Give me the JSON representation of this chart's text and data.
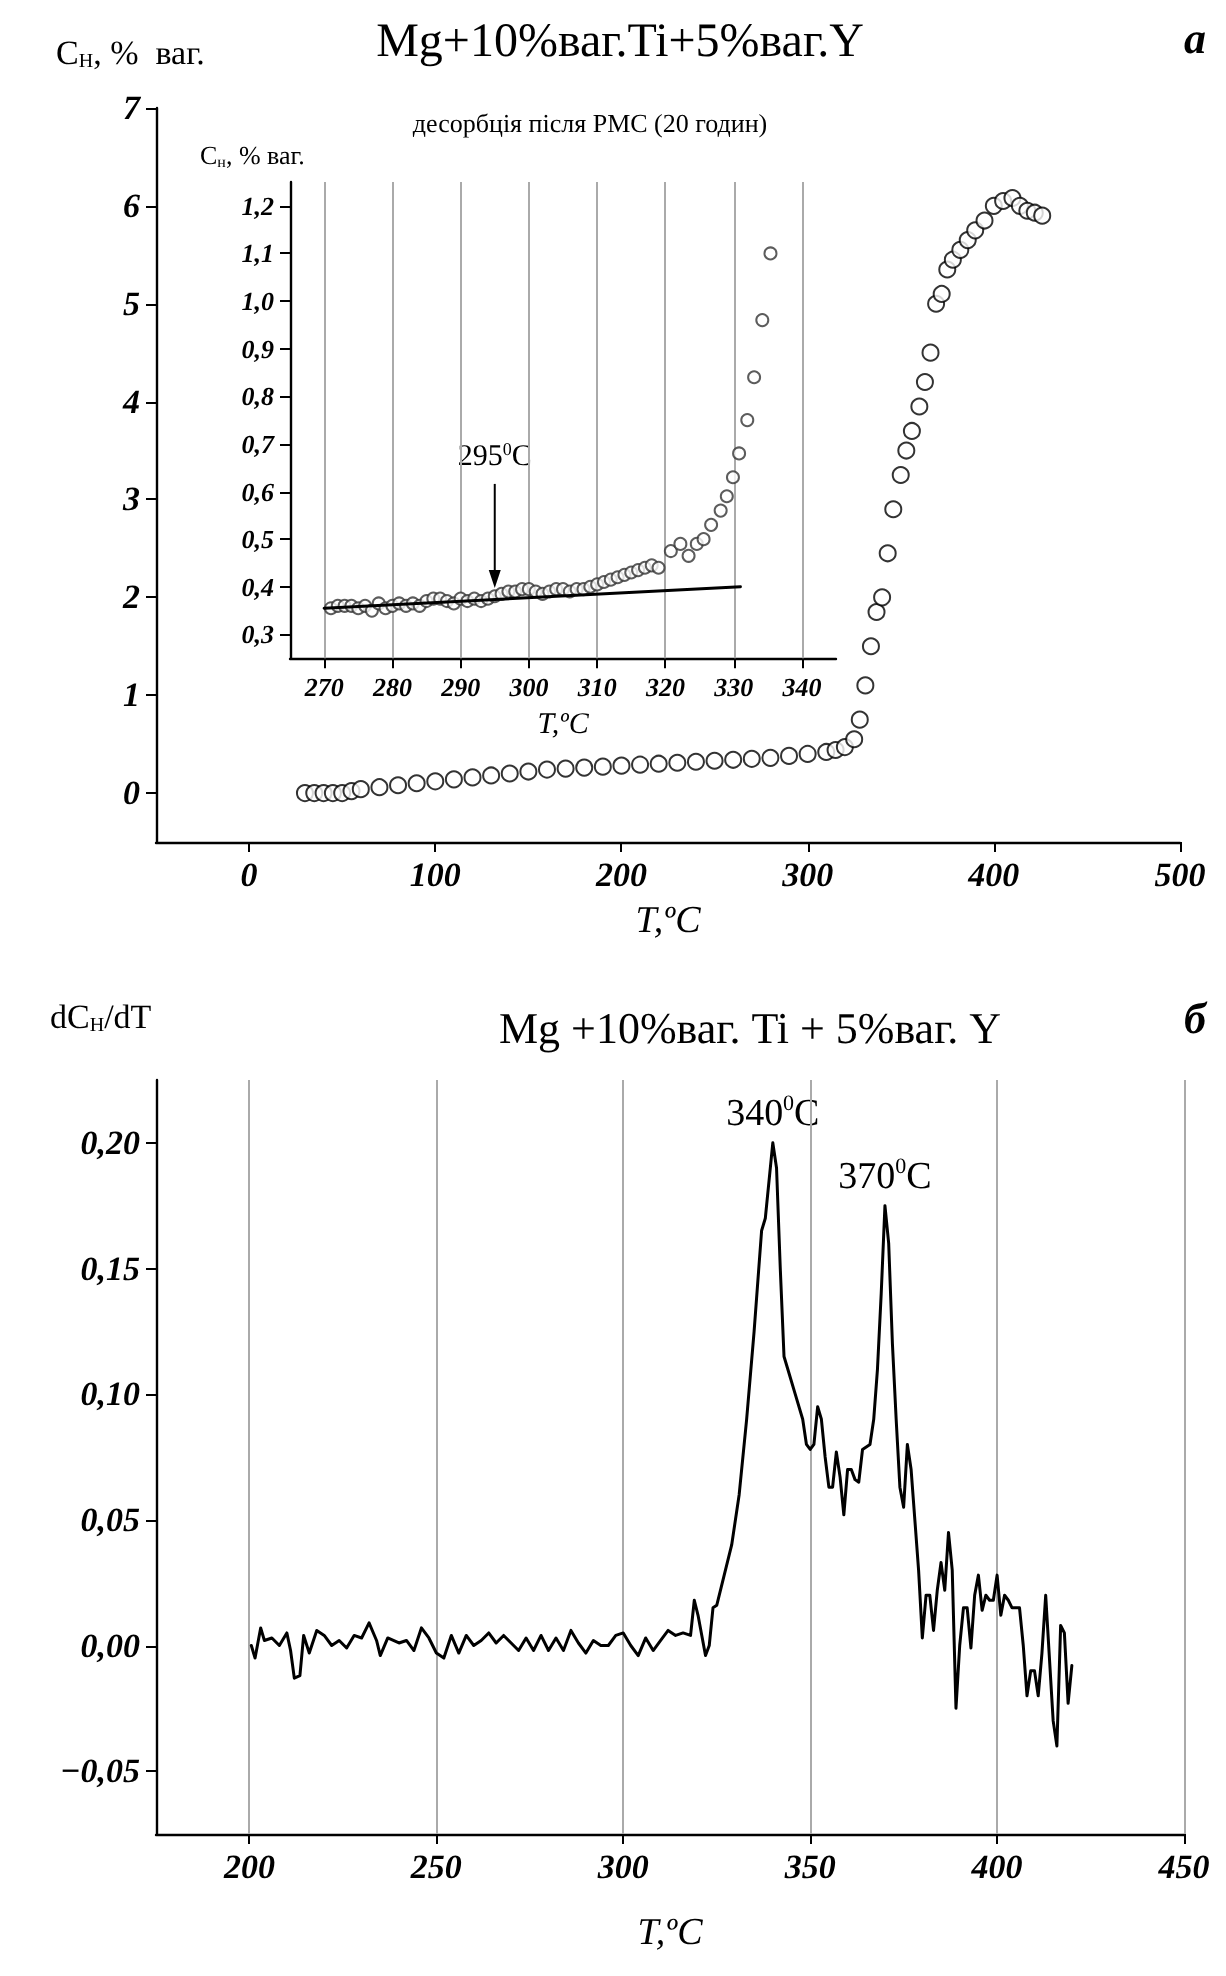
{
  "chart_data": [
    {
      "type": "scatter",
      "title": "Mg+10%ваг.Ti+5%ваг.Y",
      "xlabel": "T,ºC",
      "ylabel": "C$_{H}$, %  ваг.",
      "annotations": [
        "а"
      ],
      "marker": "circle",
      "grid": false,
      "xlim": [
        -50,
        500
      ],
      "ylim": [
        -0.5,
        7
      ],
      "xticks": [
        0,
        100,
        200,
        300,
        400,
        500
      ],
      "yticks": [
        0,
        1,
        2,
        3,
        4,
        5,
        6,
        7
      ],
      "series": [
        {
          "color": "#000000",
          "x": [
            30,
            35,
            40,
            45,
            50,
            55,
            60,
            70,
            80,
            90,
            100,
            110,
            120,
            130,
            140,
            150,
            160,
            170,
            180,
            190,
            200,
            210,
            220,
            230,
            240,
            250,
            260,
            270,
            280,
            290,
            300,
            310,
            315,
            320,
            325,
            328,
            331,
            334,
            337,
            340,
            343,
            346,
            350,
            353,
            356,
            360,
            363,
            366,
            369,
            372,
            375,
            378,
            382,
            386,
            390,
            395,
            400,
            405,
            410,
            414,
            418,
            422,
            426
          ],
          "values": [
            0,
            0,
            0,
            0,
            0,
            0.02,
            0.04,
            0.06,
            0.08,
            0.1,
            0.12,
            0.14,
            0.16,
            0.18,
            0.2,
            0.22,
            0.24,
            0.25,
            0.26,
            0.27,
            0.28,
            0.29,
            0.3,
            0.31,
            0.32,
            0.33,
            0.34,
            0.35,
            0.36,
            0.38,
            0.4,
            0.42,
            0.44,
            0.47,
            0.55,
            0.75,
            1.1,
            1.5,
            1.85,
            2.0,
            2.45,
            2.9,
            3.25,
            3.5,
            3.7,
            3.95,
            4.2,
            4.5,
            5.0,
            5.1,
            5.35,
            5.45,
            5.55,
            5.65,
            5.75,
            5.85,
            6.0,
            6.05,
            6.08,
            6.0,
            5.95,
            5.93,
            5.9
          ]
        }
      ]
    },
    {
      "type": "scatter",
      "title": "десорбція після РМС (20 годин)",
      "xlabel": "T,ºC",
      "ylabel": "C$_{н}$, % ваг.",
      "annotations": [
        {
          "text": "295$^{0}$C",
          "x": 295,
          "y": 0.385
        }
      ],
      "marker": "circle",
      "grid": "x",
      "xlim": [
        265,
        345
      ],
      "ylim": [
        0.25,
        1.25
      ],
      "xticks": [
        270,
        280,
        290,
        300,
        310,
        320,
        330,
        340
      ],
      "yticks": [
        {
          "value": 0.3,
          "label": "0,3"
        },
        {
          "value": 0.4,
          "label": "0,4"
        },
        {
          "value": 0.5,
          "label": "0,5"
        },
        {
          "value": 0.6,
          "label": "0,6"
        },
        {
          "value": 0.7,
          "label": "0,7"
        },
        {
          "value": 0.8,
          "label": "0,8"
        },
        {
          "value": 0.9,
          "label": "0,9"
        },
        {
          "value": 1.0,
          "label": "1,0"
        },
        {
          "value": 1.1,
          "label": "1,1"
        },
        {
          "value": 1.2,
          "label": "1,2"
        }
      ],
      "series": [
        {
          "color": "#333333",
          "x": [
            271,
            272,
            273,
            274,
            275,
            276,
            277,
            278,
            279,
            280,
            281,
            282,
            283,
            284,
            285,
            286,
            287,
            288,
            289,
            290,
            291,
            292,
            293,
            294,
            295,
            296,
            297,
            298,
            299,
            300,
            301,
            302,
            303,
            304,
            305,
            306,
            307,
            308,
            309,
            310,
            311,
            312,
            313,
            314,
            315,
            316,
            317,
            318,
            319,
            320.8,
            322.2,
            323.4,
            324.6,
            325.6,
            326.7,
            328.1,
            329,
            329.9,
            330.8,
            332,
            333,
            334.2,
            335.4
          ],
          "values": [
            0.355,
            0.36,
            0.36,
            0.36,
            0.355,
            0.36,
            0.35,
            0.365,
            0.355,
            0.36,
            0.365,
            0.36,
            0.365,
            0.36,
            0.37,
            0.375,
            0.375,
            0.37,
            0.365,
            0.375,
            0.37,
            0.375,
            0.37,
            0.375,
            0.38,
            0.385,
            0.39,
            0.39,
            0.395,
            0.395,
            0.39,
            0.385,
            0.39,
            0.395,
            0.395,
            0.39,
            0.395,
            0.395,
            0.4,
            0.405,
            0.41,
            0.415,
            0.42,
            0.425,
            0.43,
            0.435,
            0.44,
            0.445,
            0.44,
            0.475,
            0.49,
            0.465,
            0.49,
            0.5,
            0.53,
            0.56,
            0.59,
            0.63,
            0.68,
            0.75,
            0.84,
            0.96,
            1.1
          ]
        },
        {
          "type": "line",
          "marker": "none",
          "color": "#000000",
          "x": [
            270,
            331
          ],
          "values": [
            0.355,
            0.4
          ]
        }
      ]
    },
    {
      "type": "line",
      "title": "Mg +10%ваг. Ti + 5%ваг. Y",
      "xlabel": "T,ºC",
      "ylabel": "dC$_{H}$/dT",
      "annotations": [
        "б",
        {
          "text": "340$^{0}$C",
          "x": 340,
          "y": 0.2
        },
        {
          "text": "370$^{0}$C",
          "x": 370,
          "y": 0.175
        }
      ],
      "marker": "none",
      "grid": "x",
      "xlim": [
        175,
        450
      ],
      "ylim": [
        -0.075,
        0.225
      ],
      "xticks": [
        200,
        250,
        300,
        350,
        400,
        450
      ],
      "yticks": [
        {
          "value": -0.05,
          "label": "−0,05"
        },
        {
          "value": 0,
          "label": "0,00"
        },
        {
          "value": 0.05,
          "label": "0,05"
        },
        {
          "value": 0.1,
          "label": "0,10"
        },
        {
          "value": 0.15,
          "label": "0,15"
        },
        {
          "value": 0.2,
          "label": "0,20"
        }
      ],
      "series": [
        {
          "color": "#000000",
          "x": [
            200.5,
            201.5,
            203,
            204,
            206,
            208,
            210,
            211,
            212,
            213.5,
            214.5,
            216,
            218,
            220,
            222,
            224,
            226,
            228,
            230,
            232,
            234,
            235,
            237,
            240,
            242,
            244,
            246,
            248,
            250,
            252,
            254,
            256,
            258,
            260,
            262,
            264,
            266,
            268,
            270,
            272,
            274,
            276,
            278,
            280,
            282,
            284,
            286,
            288,
            290,
            292,
            294,
            296,
            298,
            300,
            302,
            304,
            306,
            308,
            310,
            312,
            314,
            316,
            318,
            319,
            320,
            322,
            323,
            324,
            325,
            327,
            329,
            331,
            333,
            335,
            337,
            338,
            340,
            341,
            342,
            343,
            344,
            346,
            348,
            349,
            350,
            351,
            352,
            353,
            354,
            355,
            356,
            357,
            358,
            359,
            360,
            361,
            362,
            363,
            364,
            366,
            367,
            368,
            369,
            370,
            371,
            372,
            373,
            374,
            375,
            376,
            377,
            378,
            379,
            380,
            381,
            382,
            383,
            384,
            385,
            386,
            387,
            388,
            389,
            390,
            391,
            392,
            393,
            394,
            395,
            396,
            397,
            398,
            399,
            400,
            401,
            402,
            403,
            404,
            405,
            406,
            407,
            408,
            409,
            410,
            411,
            412,
            413,
            414,
            415,
            416,
            417,
            418,
            419,
            420
          ],
          "values": [
            0.0,
            -0.005,
            0.007,
            0.002,
            0.003,
            0.0,
            0.005,
            -0.002,
            -0.013,
            -0.012,
            0.004,
            -0.003,
            0.006,
            0.004,
            0.0,
            0.002,
            -0.001,
            0.004,
            0.003,
            0.009,
            0.002,
            -0.004,
            0.003,
            0.001,
            0.002,
            -0.002,
            0.007,
            0.003,
            -0.003,
            -0.005,
            0.004,
            -0.003,
            0.004,
            0.0,
            0.002,
            0.005,
            0.001,
            0.004,
            0.001,
            -0.002,
            0.003,
            -0.002,
            0.004,
            -0.002,
            0.003,
            -0.002,
            0.006,
            0.001,
            -0.003,
            0.002,
            0.0,
            0.0,
            0.004,
            0.005,
            0.0,
            -0.004,
            0.003,
            -0.002,
            0.002,
            0.006,
            0.004,
            0.005,
            0.004,
            0.018,
            0.012,
            -0.004,
            0.0,
            0.015,
            0.016,
            0.028,
            0.04,
            0.06,
            0.09,
            0.125,
            0.165,
            0.17,
            0.2,
            0.19,
            0.15,
            0.115,
            0.11,
            0.1,
            0.09,
            0.08,
            0.078,
            0.08,
            0.095,
            0.09,
            0.075,
            0.063,
            0.063,
            0.077,
            0.067,
            0.052,
            0.07,
            0.07,
            0.066,
            0.065,
            0.078,
            0.08,
            0.09,
            0.11,
            0.14,
            0.175,
            0.16,
            0.12,
            0.09,
            0.063,
            0.055,
            0.08,
            0.07,
            0.05,
            0.03,
            0.003,
            0.02,
            0.02,
            0.006,
            0.022,
            0.033,
            0.022,
            0.045,
            0.03,
            -0.025,
            0.0,
            0.015,
            0.015,
            -0.001,
            0.02,
            0.028,
            0.014,
            0.02,
            0.018,
            0.018,
            0.028,
            0.012,
            0.02,
            0.018,
            0.015,
            0.015,
            0.015,
            0.0,
            -0.02,
            -0.01,
            -0.01,
            -0.02,
            -0.003,
            0.02,
            -0.005,
            -0.03,
            -0.04,
            0.008,
            0.005,
            -0.023,
            -0.008
          ]
        }
      ]
    }
  ]
}
